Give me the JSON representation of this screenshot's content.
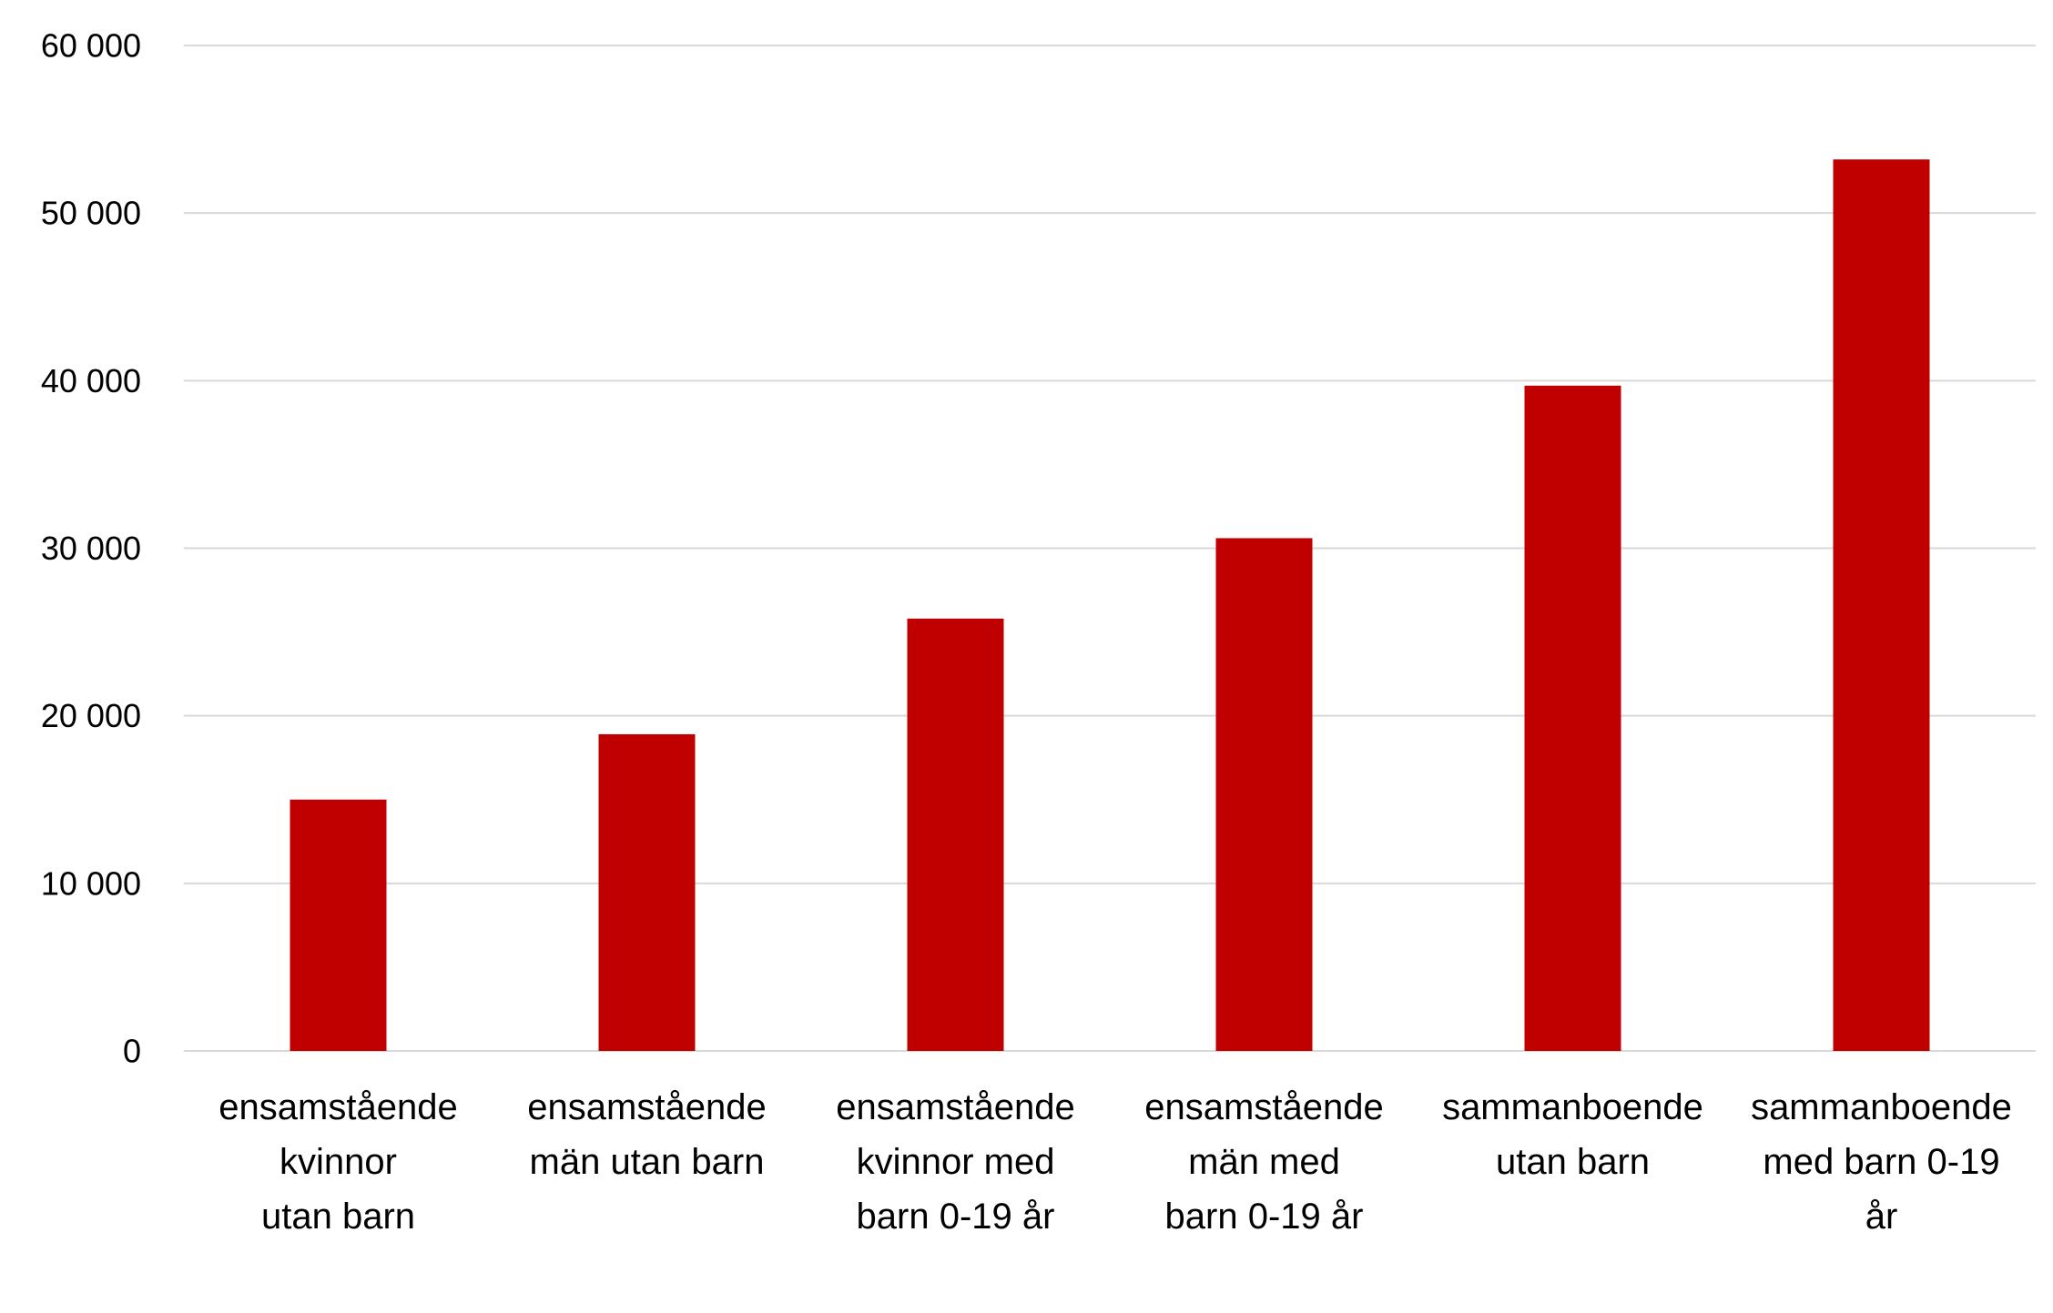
{
  "chart_data": {
    "type": "bar",
    "categories": [
      [
        "ensamstående",
        "kvinnor",
        "utan barn"
      ],
      [
        "ensamstående",
        "män utan barn"
      ],
      [
        "ensamstående",
        "kvinnor med",
        "barn 0-19 år"
      ],
      [
        "ensamstående",
        "män med",
        "barn 0-19 år"
      ],
      [
        "sammanboende",
        "utan barn"
      ],
      [
        "sammanboende",
        "med barn 0-19",
        "år"
      ]
    ],
    "values": [
      15000,
      18900,
      25800,
      30600,
      39700,
      53200
    ],
    "ylim": [
      0,
      60000
    ],
    "yticks": [
      0,
      10000,
      20000,
      30000,
      40000,
      50000,
      60000
    ],
    "ytick_labels": [
      "0",
      "10 000",
      "20 000",
      "30 000",
      "40 000",
      "50 000",
      "60 000"
    ],
    "grid": true,
    "bar_color": "#C00000",
    "grid_color": "#D9D9D9"
  }
}
